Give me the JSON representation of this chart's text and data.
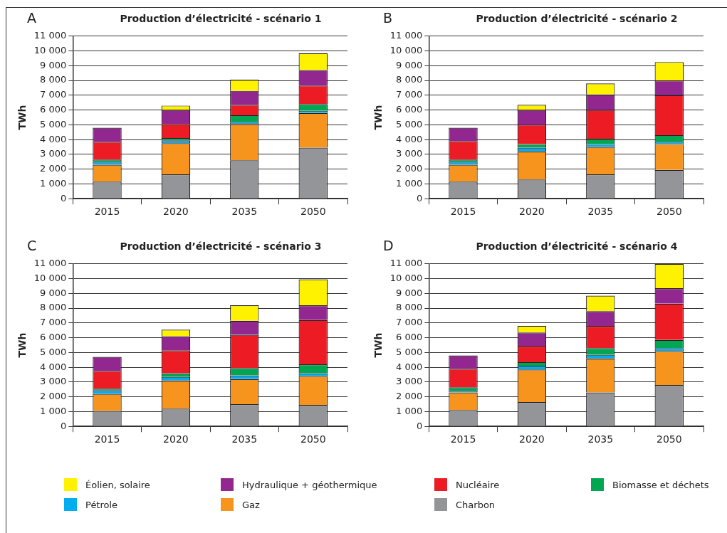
{
  "chart_data": [
    {
      "type": "bar",
      "title": "Production d’électricité - scénario 1",
      "ylabel": "TWh",
      "annotations": [
        "A"
      ],
      "categories": [
        "2015",
        "2020",
        "2035",
        "2050"
      ],
      "stacked": true,
      "grid": "y",
      "legend": "bottom",
      "ylim": [
        0,
        11000
      ],
      "yticks": [
        {
          "value": 0,
          "label": "0"
        },
        {
          "value": 1000,
          "label": "1 000"
        },
        {
          "value": 2000,
          "label": "2 000"
        },
        {
          "value": 3000,
          "label": "3 000"
        },
        {
          "value": 4000,
          "label": "4 000"
        },
        {
          "value": 5000,
          "label": "5 000"
        },
        {
          "value": 6000,
          "label": "6 000"
        },
        {
          "value": 7000,
          "label": "7 000"
        },
        {
          "value": 8000,
          "label": "8 000"
        },
        {
          "value": 9000,
          "label": "9 000"
        },
        {
          "value": 10000,
          "label": "10 000"
        },
        {
          "value": 11000,
          "label": "11 000"
        }
      ],
      "series": [
        {
          "name": "Charbon",
          "color": "#939598",
          "values": [
            1150,
            1650,
            2600,
            3450
          ]
        },
        {
          "name": "Gaz",
          "color": "#f7941d",
          "values": [
            1150,
            2100,
            2450,
            2350
          ]
        },
        {
          "name": "Pétrole",
          "color": "#00aeef",
          "values": [
            200,
            200,
            150,
            150
          ]
        },
        {
          "name": "Biomasse et déchets",
          "color": "#00a651",
          "values": [
            150,
            150,
            450,
            450
          ]
        },
        {
          "name": "Nucléaire",
          "color": "#ed1c24",
          "values": [
            1200,
            950,
            700,
            1250
          ]
        },
        {
          "name": "Hydraulique + géothermique",
          "color": "#92278f",
          "values": [
            950,
            950,
            950,
            1050
          ]
        },
        {
          "name": "Éolien, solaire",
          "color": "#fff200",
          "values": [
            0,
            300,
            750,
            1150
          ]
        }
      ]
    },
    {
      "type": "bar",
      "title": "Production d’électricité - scénario 2",
      "ylabel": "TWh",
      "annotations": [
        "B"
      ],
      "categories": [
        "2015",
        "2020",
        "2035",
        "2050"
      ],
      "stacked": true,
      "grid": "y",
      "legend": "bottom",
      "ylim": [
        0,
        11000
      ],
      "yticks": [
        {
          "value": 0,
          "label": "0"
        },
        {
          "value": 1000,
          "label": "1 000"
        },
        {
          "value": 2000,
          "label": "2 000"
        },
        {
          "value": 3000,
          "label": "3 000"
        },
        {
          "value": 4000,
          "label": "4 000"
        },
        {
          "value": 5000,
          "label": "5 000"
        },
        {
          "value": 6000,
          "label": "6 000"
        },
        {
          "value": 7000,
          "label": "7 000"
        },
        {
          "value": 8000,
          "label": "8 000"
        },
        {
          "value": 9000,
          "label": "9 000"
        },
        {
          "value": 10000,
          "label": "10 000"
        },
        {
          "value": 11000,
          "label": "11 000"
        }
      ],
      "series": [
        {
          "name": "Charbon",
          "color": "#939598",
          "values": [
            1150,
            1300,
            1650,
            1950
          ]
        },
        {
          "name": "Gaz",
          "color": "#f7941d",
          "values": [
            1150,
            1900,
            1850,
            1750
          ]
        },
        {
          "name": "Pétrole",
          "color": "#00aeef",
          "values": [
            200,
            250,
            200,
            150
          ]
        },
        {
          "name": "Biomasse et déchets",
          "color": "#00a651",
          "values": [
            150,
            250,
            350,
            450
          ]
        },
        {
          "name": "Nucléaire",
          "color": "#ed1c24",
          "values": [
            1250,
            1300,
            1950,
            2700
          ]
        },
        {
          "name": "Hydraulique + géothermique",
          "color": "#92278f",
          "values": [
            900,
            1000,
            1050,
            1000
          ]
        },
        {
          "name": "Éolien, solaire",
          "color": "#fff200",
          "values": [
            0,
            350,
            750,
            1250
          ]
        }
      ]
    },
    {
      "type": "bar",
      "title": "Production d’électricité - scénario 3",
      "ylabel": "TWh",
      "annotations": [
        "C"
      ],
      "categories": [
        "2015",
        "2020",
        "2035",
        "2050"
      ],
      "stacked": true,
      "grid": "y",
      "legend": "bottom",
      "ylim": [
        0,
        11000
      ],
      "yticks": [
        {
          "value": 0,
          "label": "0"
        },
        {
          "value": 1000,
          "label": "1 000"
        },
        {
          "value": 2000,
          "label": "2 000"
        },
        {
          "value": 3000,
          "label": "3 000"
        },
        {
          "value": 4000,
          "label": "4 000"
        },
        {
          "value": 5000,
          "label": "5 000"
        },
        {
          "value": 6000,
          "label": "6 000"
        },
        {
          "value": 7000,
          "label": "7 000"
        },
        {
          "value": 8000,
          "label": "8 000"
        },
        {
          "value": 9000,
          "label": "9 000"
        },
        {
          "value": 10000,
          "label": "10 000"
        },
        {
          "value": 11000,
          "label": "11 000"
        }
      ],
      "series": [
        {
          "name": "Charbon",
          "color": "#939598",
          "values": [
            1050,
            1200,
            1500,
            1450
          ]
        },
        {
          "name": "Gaz",
          "color": "#f7941d",
          "values": [
            1150,
            1900,
            1700,
            1950
          ]
        },
        {
          "name": "Pétrole",
          "color": "#00aeef",
          "values": [
            250,
            250,
            250,
            200
          ]
        },
        {
          "name": "Biomasse et déchets",
          "color": "#00a651",
          "values": [
            100,
            250,
            500,
            600
          ]
        },
        {
          "name": "Nucléaire",
          "color": "#ed1c24",
          "values": [
            1200,
            1550,
            2250,
            3000
          ]
        },
        {
          "name": "Hydraulique + géothermique",
          "color": "#92278f",
          "values": [
            950,
            950,
            950,
            1000
          ]
        },
        {
          "name": "Éolien, solaire",
          "color": "#fff200",
          "values": [
            0,
            450,
            1050,
            1750
          ]
        }
      ]
    },
    {
      "type": "bar",
      "title": "Production d’électricité - scénario 4",
      "ylabel": "TWh",
      "annotations": [
        "D"
      ],
      "categories": [
        "2015",
        "2020",
        "2035",
        "2050"
      ],
      "stacked": true,
      "grid": "y",
      "legend": "bottom",
      "ylim": [
        0,
        11000
      ],
      "yticks": [
        {
          "value": 0,
          "label": "0"
        },
        {
          "value": 1000,
          "label": "1 000"
        },
        {
          "value": 2000,
          "label": "2 000"
        },
        {
          "value": 3000,
          "label": "3 000"
        },
        {
          "value": 4000,
          "label": "4 000"
        },
        {
          "value": 5000,
          "label": "5 000"
        },
        {
          "value": 6000,
          "label": "6 000"
        },
        {
          "value": 7000,
          "label": "7 000"
        },
        {
          "value": 8000,
          "label": "8 000"
        },
        {
          "value": 9000,
          "label": "9 000"
        },
        {
          "value": 10000,
          "label": "10 000"
        },
        {
          "value": 11000,
          "label": "11 000"
        }
      ],
      "series": [
        {
          "name": "Charbon",
          "color": "#939598",
          "values": [
            1100,
            1650,
            2300,
            2800
          ]
        },
        {
          "name": "Gaz",
          "color": "#f7941d",
          "values": [
            1200,
            2200,
            2300,
            2300
          ]
        },
        {
          "name": "Pétrole",
          "color": "#00aeef",
          "values": [
            100,
            250,
            250,
            200
          ]
        },
        {
          "name": "Biomasse et déchets",
          "color": "#00a651",
          "values": [
            250,
            250,
            450,
            550
          ]
        },
        {
          "name": "Nucléaire",
          "color": "#ed1c24",
          "values": [
            1250,
            1100,
            1500,
            2450
          ]
        },
        {
          "name": "Hydraulique + géothermique",
          "color": "#92278f",
          "values": [
            900,
            900,
            1000,
            1050
          ]
        },
        {
          "name": "Éolien, solaire",
          "color": "#fff200",
          "values": [
            0,
            450,
            1050,
            1650
          ]
        }
      ]
    }
  ]
}
